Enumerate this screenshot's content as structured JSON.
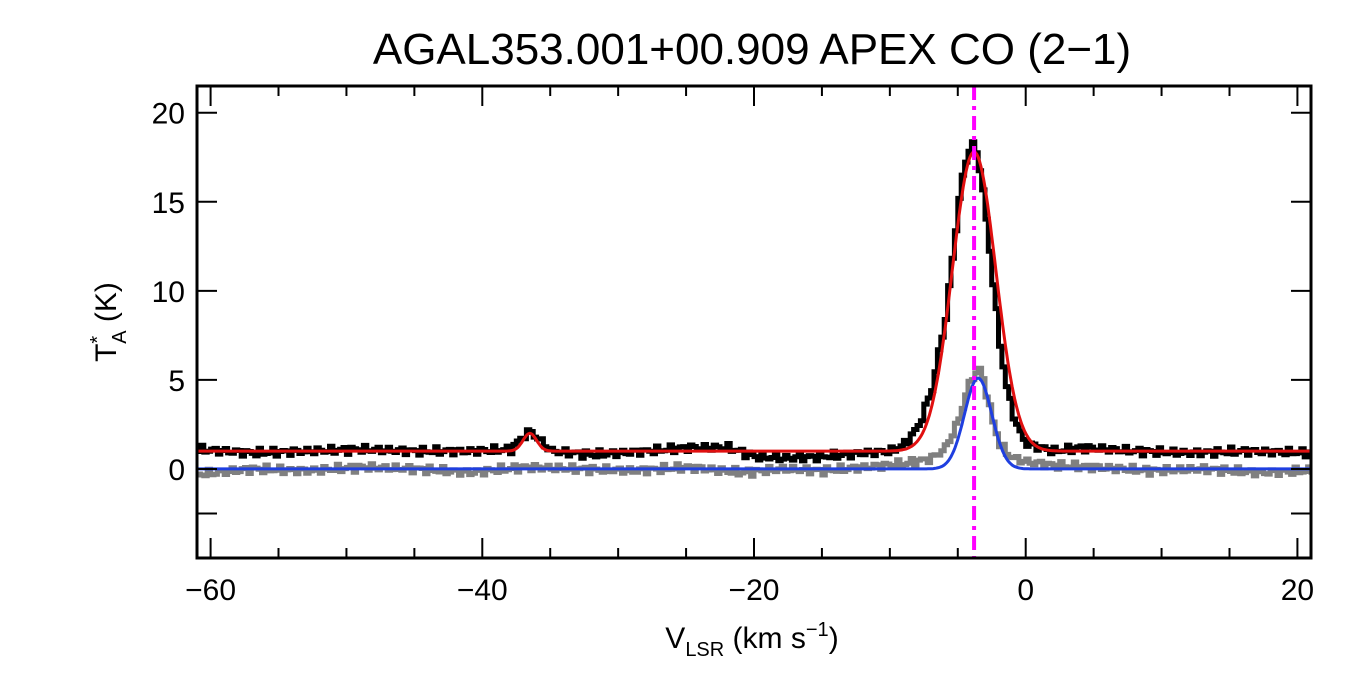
{
  "chart_data": {
    "type": "line",
    "title": "AGAL353.001+00.909  APEX CO (2−1)",
    "xlabel": {
      "main": "V",
      "sub": "LSR",
      "unit_pre": " (km s",
      "sup": "−1",
      "unit_post": ")"
    },
    "ylabel": {
      "main": "T",
      "sup": "*",
      "sub": "A",
      "unit": " (K)"
    },
    "xlim": [
      -61,
      21
    ],
    "ylim": [
      -5,
      21.5
    ],
    "xticks": [
      -60,
      -40,
      -20,
      0,
      20
    ],
    "xtick_labels": [
      "−60",
      "−40",
      "−20",
      "0",
      "20"
    ],
    "yticks": [
      0,
      5,
      10,
      15,
      20
    ],
    "ytick_labels": [
      "0",
      "5",
      "10",
      "15",
      "20"
    ],
    "vline": {
      "x": -3.8,
      "color": "#ff00ff",
      "style": "dash-dot"
    },
    "series": [
      {
        "color": "#000000",
        "style": "step",
        "x": [
          -61,
          -57,
          -53,
          -49,
          -45,
          -41,
          -38,
          -37,
          -36.5,
          -36,
          -35,
          -32,
          -28,
          -25,
          -22,
          -20,
          -18,
          -15,
          -12,
          -10,
          -9,
          -8,
          -7,
          -6,
          -5.5,
          -5,
          -4.5,
          -4,
          -3.5,
          -3,
          -2.5,
          -2,
          -1.5,
          -1,
          -0.5,
          0,
          1,
          2,
          4,
          8,
          12,
          16,
          21
        ],
        "y": [
          1.1,
          0.9,
          1.0,
          1.1,
          1.0,
          1.0,
          1.1,
          1.9,
          2.1,
          1.7,
          1.0,
          0.8,
          1.0,
          1.2,
          1.2,
          0.7,
          0.6,
          0.7,
          0.9,
          1.0,
          1.4,
          2.4,
          4.5,
          8.5,
          11.8,
          15.2,
          17.4,
          18.3,
          17.0,
          14.0,
          10.5,
          7.0,
          4.6,
          3.0,
          2.0,
          1.4,
          1.2,
          1.0,
          1.2,
          1.0,
          0.9,
          1.0,
          0.9
        ]
      },
      {
        "color": "#808080",
        "style": "step",
        "x": [
          -61,
          -57,
          -53,
          -49,
          -45,
          -41,
          -37,
          -33,
          -29,
          -25,
          -21,
          -18,
          -15,
          -12,
          -9,
          -7,
          -6,
          -5,
          -4.5,
          -4,
          -3.5,
          -3,
          -2.5,
          -2,
          -1.5,
          -1,
          0,
          2,
          5,
          9,
          13,
          17,
          21
        ],
        "y": [
          -0.3,
          0.0,
          -0.1,
          0.1,
          0.0,
          -0.2,
          0.1,
          0.0,
          -0.1,
          0.1,
          -0.2,
          0.0,
          -0.1,
          0.1,
          0.3,
          0.6,
          1.2,
          2.8,
          4.2,
          5.2,
          5.6,
          4.3,
          2.6,
          1.4,
          0.9,
          0.6,
          0.4,
          0.2,
          0.1,
          -0.1,
          0.0,
          -0.2,
          -0.1
        ]
      },
      {
        "color": "#e01010",
        "style": "gaussian",
        "baseline": 1.0,
        "components": [
          {
            "amp": 1.0,
            "center": -36.5,
            "sigma": 0.5
          },
          {
            "amp": 16.8,
            "center": -3.8,
            "sigma": 1.6
          }
        ]
      },
      {
        "color": "#1f3fe0",
        "style": "gaussian",
        "baseline": 0.0,
        "components": [
          {
            "amp": 5.1,
            "center": -3.5,
            "sigma": 1.0
          }
        ]
      }
    ]
  }
}
